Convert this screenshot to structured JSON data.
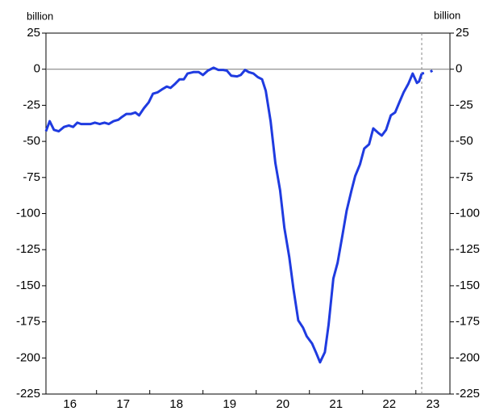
{
  "chart_data": {
    "type": "line",
    "y_axis_label": "billion",
    "y2_axis_label": "billion",
    "xlim": [
      16.05,
      23.64
    ],
    "xticks": [
      {
        "value": 16.5,
        "label": "16"
      },
      {
        "value": 17.5,
        "label": "17"
      },
      {
        "value": 18.5,
        "label": "18"
      },
      {
        "value": 19.5,
        "label": "19"
      },
      {
        "value": 20.5,
        "label": "20"
      },
      {
        "value": 21.5,
        "label": "21"
      },
      {
        "value": 22.5,
        "label": "22"
      },
      {
        "value": 23.32,
        "label": "23"
      }
    ],
    "x_minor_ticks": [
      17,
      18,
      19,
      20,
      21,
      22,
      23
    ],
    "ylim": [
      -225,
      25
    ],
    "yticks": [
      25,
      0,
      -25,
      -50,
      -75,
      -100,
      -125,
      -150,
      -175,
      -200,
      -225
    ],
    "y2lim": [
      -225,
      25
    ],
    "y2ticks": [
      25,
      0,
      -25,
      -50,
      -75,
      -100,
      -125,
      -150,
      -175,
      -200,
      -225
    ],
    "zero_line": true,
    "vline_x": 23.11,
    "series": [
      {
        "color": "#1f3be0",
        "style": "solid",
        "x": [
          16.05,
          16.12,
          16.2,
          16.29,
          16.39,
          16.48,
          16.56,
          16.64,
          16.71,
          16.8,
          16.89,
          16.97,
          17.06,
          17.15,
          17.23,
          17.32,
          17.41,
          17.48,
          17.56,
          17.65,
          17.73,
          17.8,
          17.89,
          17.98,
          18.06,
          18.15,
          18.23,
          18.32,
          18.39,
          18.48,
          18.56,
          18.64,
          18.71,
          18.82,
          18.92,
          19.0,
          19.09,
          19.2,
          19.29,
          19.38,
          19.45,
          19.53,
          19.64,
          19.71,
          19.79,
          19.86,
          19.95,
          20.03,
          20.11,
          20.18,
          20.27,
          20.36,
          20.45,
          20.53,
          20.62,
          20.7,
          20.79,
          20.88,
          20.95,
          21.05,
          21.12,
          21.2,
          21.29,
          21.36,
          21.45,
          21.53,
          21.62,
          21.7,
          21.79,
          21.86,
          21.95,
          22.03,
          22.12,
          22.2,
          22.29,
          22.36,
          22.44,
          22.53,
          22.61,
          22.7,
          22.77,
          22.86,
          22.94,
          23.02,
          23.06,
          23.11
        ],
        "values": [
          -43,
          -36,
          -42,
          -43,
          -40,
          -39,
          -40,
          -37,
          -38,
          -38,
          -38,
          -37,
          -38,
          -37,
          -38,
          -36,
          -35,
          -33,
          -31,
          -31,
          -30,
          -32,
          -27,
          -23,
          -17,
          -16,
          -14,
          -12,
          -13,
          -10,
          -7,
          -7,
          -3,
          -2,
          -2,
          -4,
          -1,
          1,
          -0.5,
          -0.5,
          -1,
          -4.5,
          -5,
          -4,
          -0.5,
          -2,
          -3,
          -5.5,
          -7,
          -15,
          -36,
          -65,
          -84,
          -110,
          -130,
          -152,
          -174,
          -179,
          -185,
          -190,
          -196,
          -203,
          -196,
          -177,
          -145,
          -134,
          -115,
          -98,
          -84,
          -74,
          -66,
          -55,
          -52,
          -41,
          -44,
          -46,
          -42,
          -32,
          -30,
          -22,
          -16,
          -10,
          -3,
          -9.5,
          -8.5,
          -3
        ]
      },
      {
        "color": "#1f3be0",
        "style": "dotted",
        "x": [
          23.11,
          23.26,
          23.41
        ],
        "values": [
          -3,
          -2,
          1
        ]
      }
    ]
  }
}
